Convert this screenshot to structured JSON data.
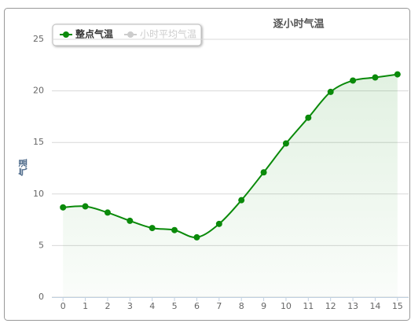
{
  "chart_data": {
    "type": "line",
    "title": "逐小时气温",
    "y_label": "气温",
    "x": [
      0,
      1,
      2,
      3,
      4,
      5,
      6,
      7,
      8,
      9,
      10,
      11,
      12,
      13,
      14,
      15
    ],
    "xlim": [
      -0.5,
      15.5
    ],
    "xticks": [
      0,
      1,
      2,
      3,
      4,
      5,
      6,
      7,
      8,
      9,
      10,
      11,
      12,
      13,
      14,
      15
    ],
    "ylim": [
      0,
      25
    ],
    "yticks": [
      0,
      5,
      10,
      15,
      20,
      25
    ],
    "grid": true,
    "legend": "top-left",
    "series": [
      {
        "name": "整点气温",
        "color": "#0a8a0a",
        "values": [
          8.7,
          8.8,
          8.2,
          7.4,
          6.7,
          6.5,
          5.8,
          7.1,
          9.4,
          12.1,
          14.9,
          17.4,
          19.9,
          21.0,
          21.3,
          21.6
        ]
      },
      {
        "name": "小时平均气温",
        "color": "#cccccc",
        "values": [
          null,
          null,
          null,
          null,
          null,
          null,
          null,
          null,
          null,
          null,
          null,
          null,
          null,
          null,
          null,
          null
        ]
      }
    ]
  }
}
